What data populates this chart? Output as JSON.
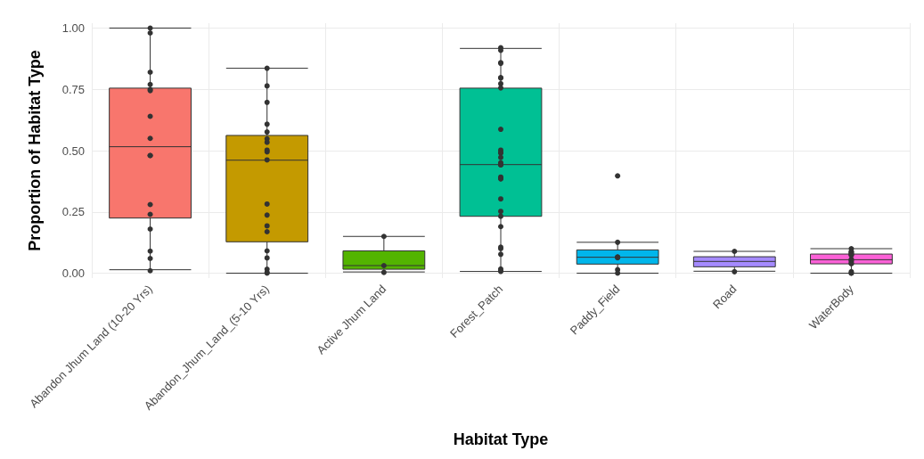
{
  "chart_data": {
    "type": "box",
    "xlabel": "Habitat Type",
    "ylabel": "Proportion of Habitat Type",
    "categories": [
      "Abandon Jhum Land (10-20 Yrs)",
      "Abandon_Jhum_Land_(5-10 Yrs)",
      "Active Jhum Land",
      "Forest_Patch",
      "Paddy_Field",
      "Road",
      "WaterBody"
    ],
    "colors": [
      "#f8766d",
      "#c49a00",
      "#53b400",
      "#00c094",
      "#00b6eb",
      "#a58aff",
      "#fb61d7"
    ],
    "boxes": [
      {
        "low": 0.014,
        "q1": 0.225,
        "median": 0.516,
        "q3": 0.755,
        "high": 1.0
      },
      {
        "low": 0.0,
        "q1": 0.128,
        "median": 0.461,
        "q3": 0.562,
        "high": 0.836
      },
      {
        "low": 0.005,
        "q1": 0.016,
        "median": 0.031,
        "q3": 0.091,
        "high": 0.15
      },
      {
        "low": 0.007,
        "q1": 0.232,
        "median": 0.443,
        "q3": 0.755,
        "high": 0.917
      },
      {
        "low": 0.0,
        "q1": 0.037,
        "median": 0.065,
        "q3": 0.095,
        "high": 0.126
      },
      {
        "low": 0.008,
        "q1": 0.026,
        "median": 0.048,
        "q3": 0.067,
        "high": 0.089
      },
      {
        "low": 0.0,
        "q1": 0.038,
        "median": 0.055,
        "q3": 0.078,
        "high": 0.1
      }
    ],
    "series": [
      {
        "type": "scatter",
        "color": "#333333",
        "x": [
          "Abandon Jhum Land (10-20 Yrs)",
          "Abandon Jhum Land (10-20 Yrs)",
          "Abandon Jhum Land (10-20 Yrs)",
          "Abandon Jhum Land (10-20 Yrs)",
          "Abandon Jhum Land (10-20 Yrs)",
          "Abandon Jhum Land (10-20 Yrs)",
          "Abandon Jhum Land (10-20 Yrs)",
          "Abandon Jhum Land (10-20 Yrs)",
          "Abandon Jhum Land (10-20 Yrs)",
          "Abandon Jhum Land (10-20 Yrs)",
          "Abandon Jhum Land (10-20 Yrs)",
          "Abandon Jhum Land (10-20 Yrs)",
          "Abandon Jhum Land (10-20 Yrs)",
          "Abandon Jhum Land (10-20 Yrs)",
          "Abandon Jhum Land (10-20 Yrs)",
          "Abandon Jhum Land (10-20 Yrs)",
          "Abandon_Jhum_Land_(5-10 Yrs)",
          "Abandon_Jhum_Land_(5-10 Yrs)",
          "Abandon_Jhum_Land_(5-10 Yrs)",
          "Abandon_Jhum_Land_(5-10 Yrs)",
          "Abandon_Jhum_Land_(5-10 Yrs)",
          "Abandon_Jhum_Land_(5-10 Yrs)",
          "Abandon_Jhum_Land_(5-10 Yrs)",
          "Abandon_Jhum_Land_(5-10 Yrs)",
          "Abandon_Jhum_Land_(5-10 Yrs)",
          "Abandon_Jhum_Land_(5-10 Yrs)",
          "Abandon_Jhum_Land_(5-10 Yrs)",
          "Abandon_Jhum_Land_(5-10 Yrs)",
          "Abandon_Jhum_Land_(5-10 Yrs)",
          "Abandon_Jhum_Land_(5-10 Yrs)",
          "Abandon_Jhum_Land_(5-10 Yrs)",
          "Abandon_Jhum_Land_(5-10 Yrs)",
          "Abandon_Jhum_Land_(5-10 Yrs)",
          "Abandon_Jhum_Land_(5-10 Yrs)",
          "Abandon_Jhum_Land_(5-10 Yrs)",
          "Active Jhum Land",
          "Active Jhum Land",
          "Active Jhum Land",
          "Forest_Patch",
          "Forest_Patch",
          "Forest_Patch",
          "Forest_Patch",
          "Forest_Patch",
          "Forest_Patch",
          "Forest_Patch",
          "Forest_Patch",
          "Forest_Patch",
          "Forest_Patch",
          "Forest_Patch",
          "Forest_Patch",
          "Forest_Patch",
          "Forest_Patch",
          "Forest_Patch",
          "Forest_Patch",
          "Forest_Patch",
          "Forest_Patch",
          "Forest_Patch",
          "Forest_Patch",
          "Forest_Patch",
          "Forest_Patch",
          "Forest_Patch",
          "Forest_Patch",
          "Forest_Patch",
          "Forest_Patch",
          "Forest_Patch",
          "Forest_Patch",
          "Forest_Patch",
          "Paddy_Field",
          "Paddy_Field",
          "Paddy_Field",
          "Paddy_Field",
          "Paddy_Field",
          "Paddy_Field",
          "Paddy_Field",
          "Road",
          "Road",
          "WaterBody",
          "WaterBody",
          "WaterBody",
          "WaterBody",
          "WaterBody",
          "WaterBody",
          "WaterBody",
          "WaterBody",
          "WaterBody",
          "WaterBody",
          "WaterBody",
          "WaterBody",
          "WaterBody",
          "WaterBody",
          "WaterBody"
        ],
        "values": [
          1.0,
          0.98,
          0.82,
          0.77,
          0.75,
          0.745,
          0.64,
          0.55,
          0.48,
          0.48,
          0.28,
          0.24,
          0.18,
          0.09,
          0.06,
          0.01,
          0.836,
          0.764,
          0.697,
          0.608,
          0.576,
          0.548,
          0.534,
          0.502,
          0.495,
          0.462,
          0.282,
          0.237,
          0.193,
          0.169,
          0.091,
          0.062,
          0.016,
          0.003,
          0.0,
          0.15,
          0.031,
          0.003,
          0.92,
          0.909,
          0.859,
          0.856,
          0.798,
          0.796,
          0.773,
          0.756,
          0.587,
          0.502,
          0.492,
          0.49,
          0.472,
          0.451,
          0.442,
          0.442,
          0.392,
          0.386,
          0.385,
          0.303,
          0.252,
          0.232,
          0.19,
          0.106,
          0.1,
          0.077,
          0.017,
          0.01,
          0.007,
          0.397,
          0.126,
          0.066,
          0.063,
          0.065,
          0.014,
          0.0,
          0.089,
          0.006,
          0.1,
          0.088,
          0.086,
          0.082,
          0.076,
          0.076,
          0.073,
          0.056,
          0.053,
          0.047,
          0.039,
          0.039,
          0.006,
          0.0,
          0.0
        ]
      }
    ],
    "ylim": [
      -0.02,
      1.02
    ],
    "yticks": [
      {
        "value": 0,
        "label": "0.00"
      },
      {
        "value": 0.25,
        "label": "0.25"
      },
      {
        "value": 0.5,
        "label": "0.50"
      },
      {
        "value": 0.75,
        "label": "0.75"
      },
      {
        "value": 1,
        "label": "1.00"
      }
    ],
    "grid": true,
    "marker": "circle"
  }
}
